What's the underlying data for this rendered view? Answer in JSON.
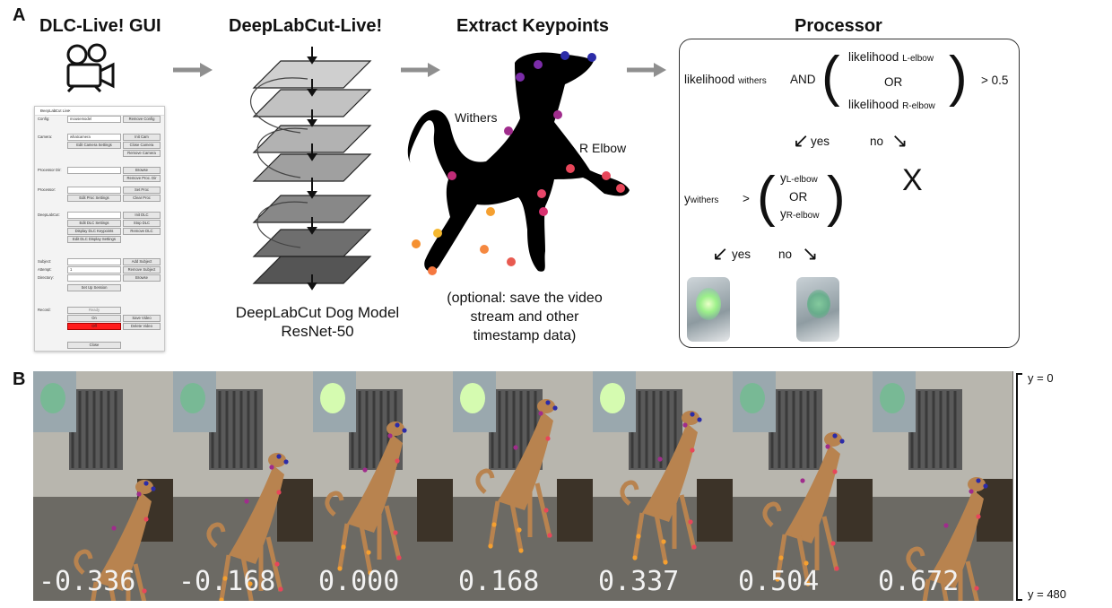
{
  "panels": {
    "a": "A",
    "b": "B"
  },
  "headings": {
    "gui": "DLC-Live! GUI",
    "dlc": "DeepLabCut-Live!",
    "keypoints": "Extract Keypoints",
    "processor": "Processor"
  },
  "model_caption": {
    "line1": "DeepLabCut Dog Model",
    "line2": "ResNet-50"
  },
  "keypoint_labels": {
    "withers": "Withers",
    "r_elbow": "R Elbow"
  },
  "optional_note": {
    "line1": "(optional: save the video",
    "line2": "stream and other",
    "line3": "timestamp data)"
  },
  "processor": {
    "likelihood": "likelihood",
    "sub_withers": "withers",
    "and": "AND",
    "sub_l_elbow": "L-elbow",
    "sub_r_elbow": "R-elbow",
    "or": "OR",
    "threshold": "> 0.5",
    "yes": "yes",
    "no": "no",
    "x_mark": "X",
    "y": "y",
    "gt": ">"
  },
  "gui": {
    "title": "DeepLabCut Live",
    "labels": {
      "config": "Config:",
      "camera": "Camera:",
      "proc_dir": "Processor Dir:",
      "processor": "Processor:",
      "deeplabcut": "DeepLabCut:",
      "subject": "Subject:",
      "attempt": "Attempt:",
      "directory": "Directory:",
      "record": "Record:"
    },
    "values": {
      "config": "mousemodel",
      "camera": "whatcamera",
      "attempt": "1"
    },
    "buttons": {
      "remove_config": "Remove Config",
      "init_cam": "Init Cam",
      "edit_cam": "Edit Camera Settings",
      "close_cam": "Close Camera",
      "remove_cam": "Remove Camera",
      "browse": "Browse",
      "remove_proc_dir": "Remove Proc. Dir",
      "edit_proc": "Edit Proc Settings",
      "set_proc": "Set Proc",
      "clear_proc": "Clear Proc",
      "init_dlc": "Init DLC",
      "edit_dlc": "Edit DLC Settings",
      "stop_dlc": "Stop DLC",
      "display_kp": "Display DLC Keypoints",
      "remove_dlc": "Remove DLC",
      "edit_display": "Edit DLC Display Settings",
      "add_subject": "Add Subject",
      "remove_subject": "Remove Subject",
      "browse2": "Browse",
      "setup_session": "Set Up Session",
      "ready": "Ready",
      "on": "On",
      "save_video": "Save Video",
      "off": "Off",
      "delete_video": "Delete Video",
      "close": "Close"
    }
  },
  "frames": [
    {
      "value": "-0.336",
      "led": "dim"
    },
    {
      "value": "-0.168",
      "led": "dim"
    },
    {
      "value": "0.000",
      "led": "bright"
    },
    {
      "value": "0.168",
      "led": "bright"
    },
    {
      "value": "0.337",
      "led": "bright"
    },
    {
      "value": "0.504",
      "led": "dim"
    },
    {
      "value": "0.672",
      "led": "dim"
    }
  ],
  "y_axis": {
    "top": "y = 0",
    "bottom": "y = 480"
  },
  "colors": {
    "arrow": "#8f8f8f",
    "keypoint_head": "#2c2ca8",
    "keypoint_body": "#a02c8c",
    "keypoint_limb": "#e8465a",
    "keypoint_leg": "#f5a030",
    "led_bright": "#d8ffb0",
    "led_dim": "#6fbd8f"
  }
}
